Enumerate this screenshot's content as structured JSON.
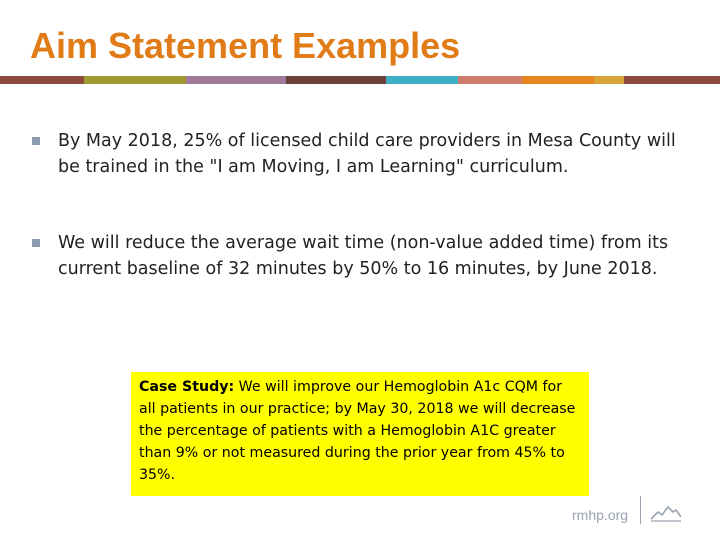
{
  "slide": {
    "title": "Aim Statement Examples",
    "title_color": "#E07B17",
    "stripe_colors": [
      "#8B4A3C",
      "#9E9A32",
      "#A17A99",
      "#6B3F3A",
      "#3DB0C6",
      "#CF7A6B",
      "#E8861E",
      "#D9A63B",
      "#8B4A3C"
    ],
    "bullet_color": "#8E9AAF",
    "bullets": [
      "By May 2018, 25% of licensed child care providers in Mesa County will be trained in the \"I am Moving, I am Learning\" curriculum.",
      "We will reduce the average wait time (non-value added time) from its current baseline of 32 minutes by 50% to 16 minutes, by June 2018."
    ],
    "case_study": {
      "label": "Case Study:",
      "text": " We will improve our Hemoglobin A1c CQM for all patients in our practice; by May 30, 2018 we will decrease the percentage of patients with a Hemoglobin A1C greater than 9% or not measured during the prior year from 45% to 35%.",
      "background": "#FFFF00"
    },
    "footer": {
      "text": "rmhp.org",
      "text_color": "#9AA3AF",
      "logo_icon": "mountain-icon"
    }
  }
}
